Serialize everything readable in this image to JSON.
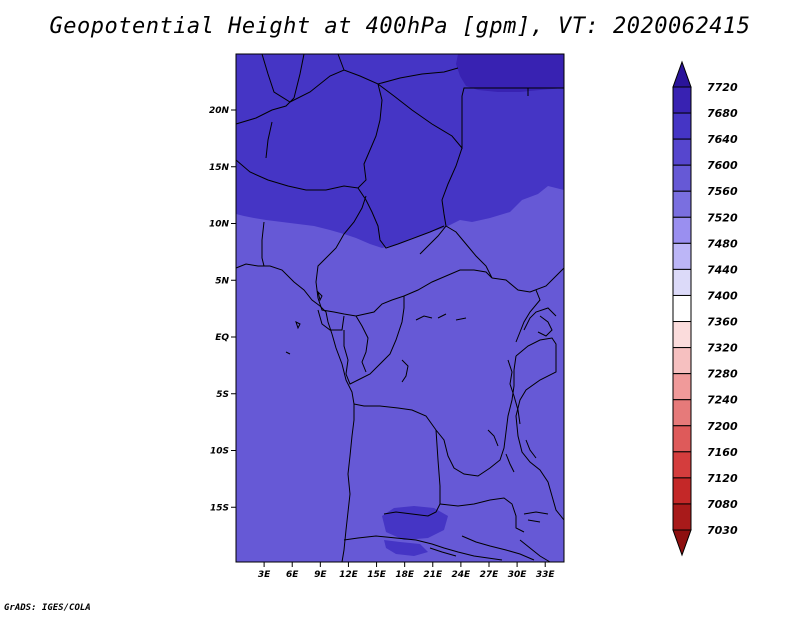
{
  "title": "Geopotential Height at 400hPa [gpm], VT: 2020062415",
  "footer": "GrADS: IGES/COLA",
  "map": {
    "lat_ticks": [
      "20N",
      "15N",
      "10N",
      "5N",
      "EQ",
      "5S",
      "10S",
      "15S"
    ],
    "lon_ticks": [
      "3E",
      "6E",
      "9E",
      "12E",
      "15E",
      "18E",
      "21E",
      "24E",
      "27E",
      "30E",
      "33E"
    ],
    "lat_values": [
      20,
      15,
      10,
      5,
      0,
      -5,
      -10,
      -15
    ],
    "lon_values": [
      3,
      6,
      9,
      12,
      15,
      18,
      21,
      24,
      27,
      30,
      33
    ],
    "fill_colors": {
      "band_7600": "#4535c5",
      "band_7560": "#6659d6",
      "band_7640": "#3822b2"
    }
  },
  "colorbar": {
    "labels": [
      "7720",
      "7680",
      "7640",
      "7600",
      "7560",
      "7520",
      "7480",
      "7440",
      "7400",
      "7360",
      "7320",
      "7280",
      "7240",
      "7200",
      "7160",
      "7120",
      "7080",
      "7030"
    ],
    "colors": [
      "#2a149a",
      "#3822b2",
      "#4535c5",
      "#5646ce",
      "#6659d6",
      "#7a6fe0",
      "#9a8ff0",
      "#bcb6f7",
      "#dcdaf9",
      "#ffffff",
      "#fbdcdc",
      "#f6c0c0",
      "#f09a9a",
      "#e67a7a",
      "#de5a5a",
      "#d43d3d",
      "#c42828",
      "#a81a1a",
      "#8e1010"
    ]
  }
}
